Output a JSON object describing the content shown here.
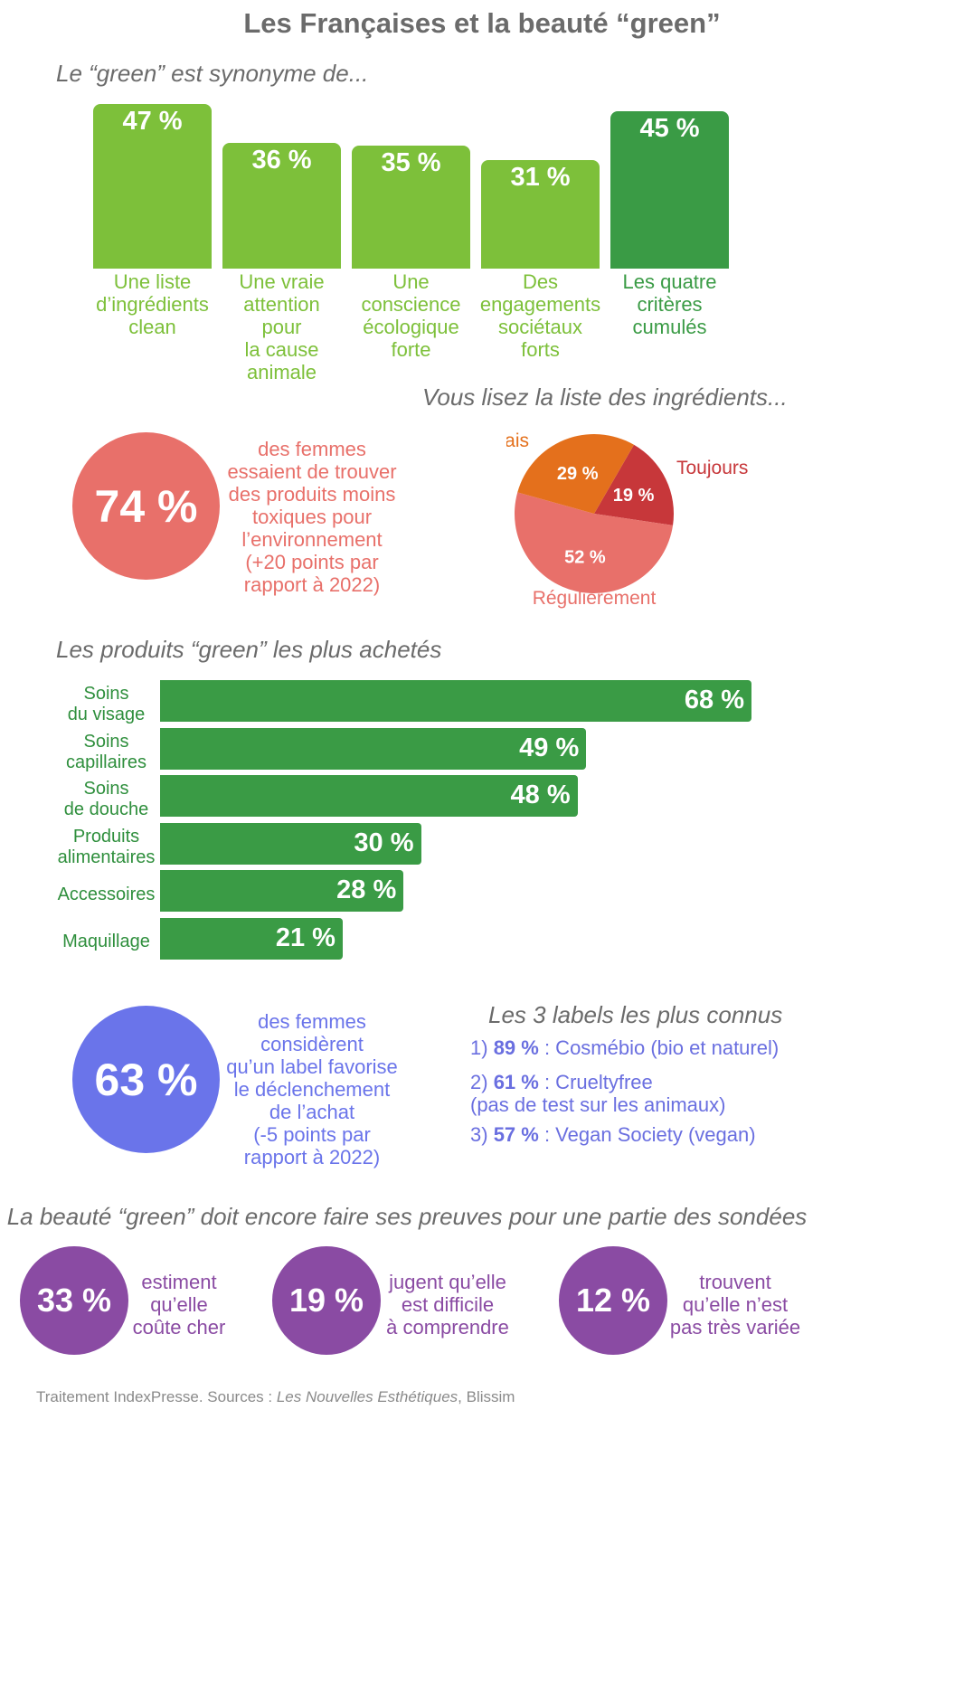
{
  "title": "Les Françaises et la beauté “green”",
  "colors": {
    "light_green": "#7dc03a",
    "dark_green": "#3a9b45",
    "coral": "#e8706a",
    "orange": "#e4701c",
    "red": "#c7373a",
    "blue": "#6a74ea",
    "purple": "#8a4ba3"
  },
  "chart_data": [
    {
      "type": "bar",
      "title": "Le “green” est synonyme de...",
      "categories": [
        "Une liste\nd’ingrédients\nclean",
        "Une vraie\nattention\npour\nla cause\nanimale",
        "Une\nconscience\nécologique\nforte",
        "Des\nengagements\nsociétaux\nforts",
        "Les quatre\ncritères\ncumulés"
      ],
      "values": [
        47,
        36,
        35,
        31,
        45
      ],
      "value_labels": [
        "47 %",
        "36 %",
        "35 %",
        "31 %",
        "45 %"
      ],
      "unit": "%",
      "ylim": [
        0,
        47
      ]
    },
    {
      "type": "pie",
      "title": "Vous lisez la liste des ingrédients...",
      "categories": [
        "Toujours",
        "Régulièrement",
        "Jamais"
      ],
      "values": [
        19,
        52,
        29
      ],
      "value_labels": [
        "19 %",
        "52 %",
        "29 %"
      ],
      "unit": "%"
    },
    {
      "type": "bar",
      "orientation": "horizontal",
      "title": "Les produits “green” les plus achetés",
      "categories": [
        "Soins\ndu visage",
        "Soins\ncapillaires",
        "Soins\nde douche",
        "Produits\nalimentaires",
        "Accessoires",
        "Maquillage"
      ],
      "values": [
        68,
        49,
        48,
        30,
        28,
        21
      ],
      "value_labels": [
        "68 %",
        "49 %",
        "48 %",
        "30 %",
        "28 %",
        "21 %"
      ],
      "unit": "%",
      "xlim": [
        0,
        68
      ]
    }
  ],
  "stat_74": {
    "value": "74 %",
    "text": "des femmes\nessaient de trouver\ndes produits moins\ntoxiques pour\nl’environnement\n(+20 points par\nrapport à 2022)"
  },
  "stat_63": {
    "value": "63 %",
    "text": "des femmes\nconsidèrent\nqu’un label favorise\nle déclenchement\nde l’achat\n(-5 points par\nrapport à 2022)"
  },
  "labels_section": {
    "title": "Les 3 labels les plus connus",
    "items": [
      {
        "rank": "1) ",
        "pct": "89 %",
        "text": " : Cosmébio (bio et naturel)"
      },
      {
        "rank": "2) ",
        "pct": "61 %",
        "text": " : Crueltyfree\n(pas de test sur les animaux)"
      },
      {
        "rank": "3) ",
        "pct": "57 %",
        "text": " : Vegan Society (vegan)"
      }
    ]
  },
  "proof_section": {
    "title": "La beauté “green” doit encore faire ses preuves pour une partie des sondées",
    "stats": [
      {
        "value": "33 %",
        "text": "estiment\nqu’elle\ncoûte cher"
      },
      {
        "value": "19 %",
        "text": "jugent qu’elle\nest difficile\nà comprendre"
      },
      {
        "value": "12 %",
        "text": "trouvent\nqu’elle n’est\npas très variée"
      }
    ]
  },
  "source": {
    "prefix": "Traitement IndexPresse. Sources : ",
    "italic": "Les Nouvelles Esthétiques",
    "suffix": ", Blissim"
  }
}
